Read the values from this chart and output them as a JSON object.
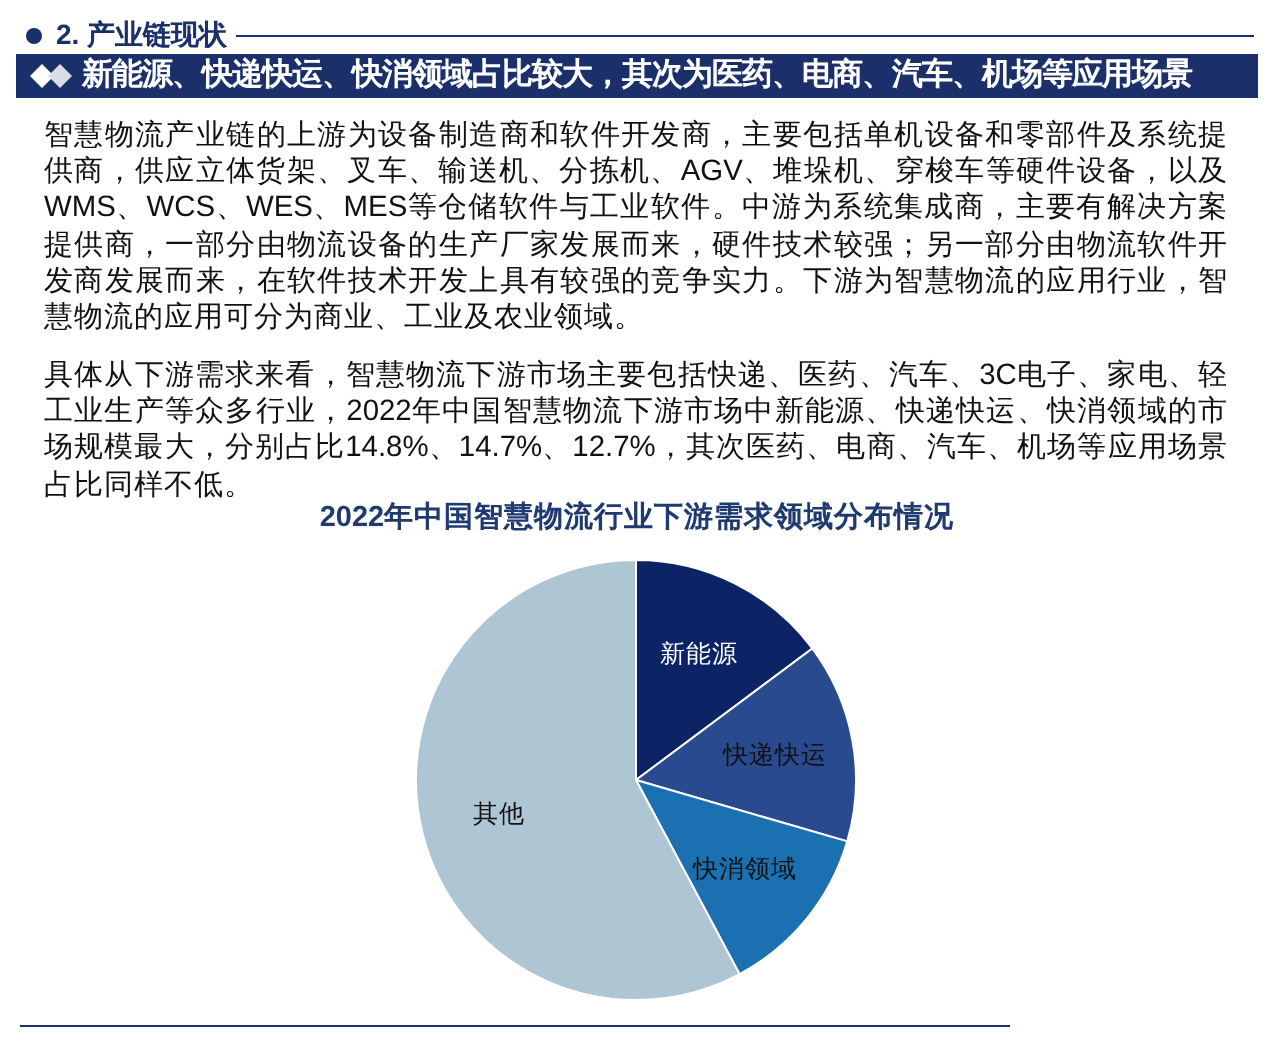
{
  "chart_data": {
    "type": "pie",
    "title": "2022年中国智慧物流行业下游需求领域分布情况",
    "categories": [
      "新能源",
      "快递快运",
      "快消领域",
      "其他"
    ],
    "values": [
      14.8,
      14.7,
      12.7,
      57.8
    ],
    "colors": [
      "#0c2366",
      "#2a4a90",
      "#1a70b0",
      "#aec5d4"
    ],
    "annotations": [
      "2. 产业链现状",
      "新能源、快递快运、快消领域占比较大，其次为医药、电商、汽车、机场等应用场景",
      "智慧物流产业链的上游为设备制造商和软件开发商，主要包括单机设备和零部件及系统提供商，供应立体货架、叉车、输送机、分拣机、AGV、堆垛机、穿梭车等硬件设备，以及WMS、WCS、WES、MES等仓储软件与工业软件。中游为系统集成商，主要有解决方案提供商，一部分由物流设备的生产厂家发展而来，硬件技术较强；另一部分由物流软件开发商发展而来，在软件技术开发上具有较强的竞争实力。下游为智慧物流的应用行业，智慧物流的应用可分为商业、工业及农业领域。",
      "具体从下游需求来看，智慧物流下游市场主要包括快递、医药、汽车、3C电子、家电、轻工业生产等众多行业，2022年中国智慧物流下游市场中新能源、快递快运、快消领域的市场规模最大，分别占比14.8%、14.7%、12.7%，其次医药、电商、汽车、机场等应用场景占比同样不低。"
    ]
  }
}
